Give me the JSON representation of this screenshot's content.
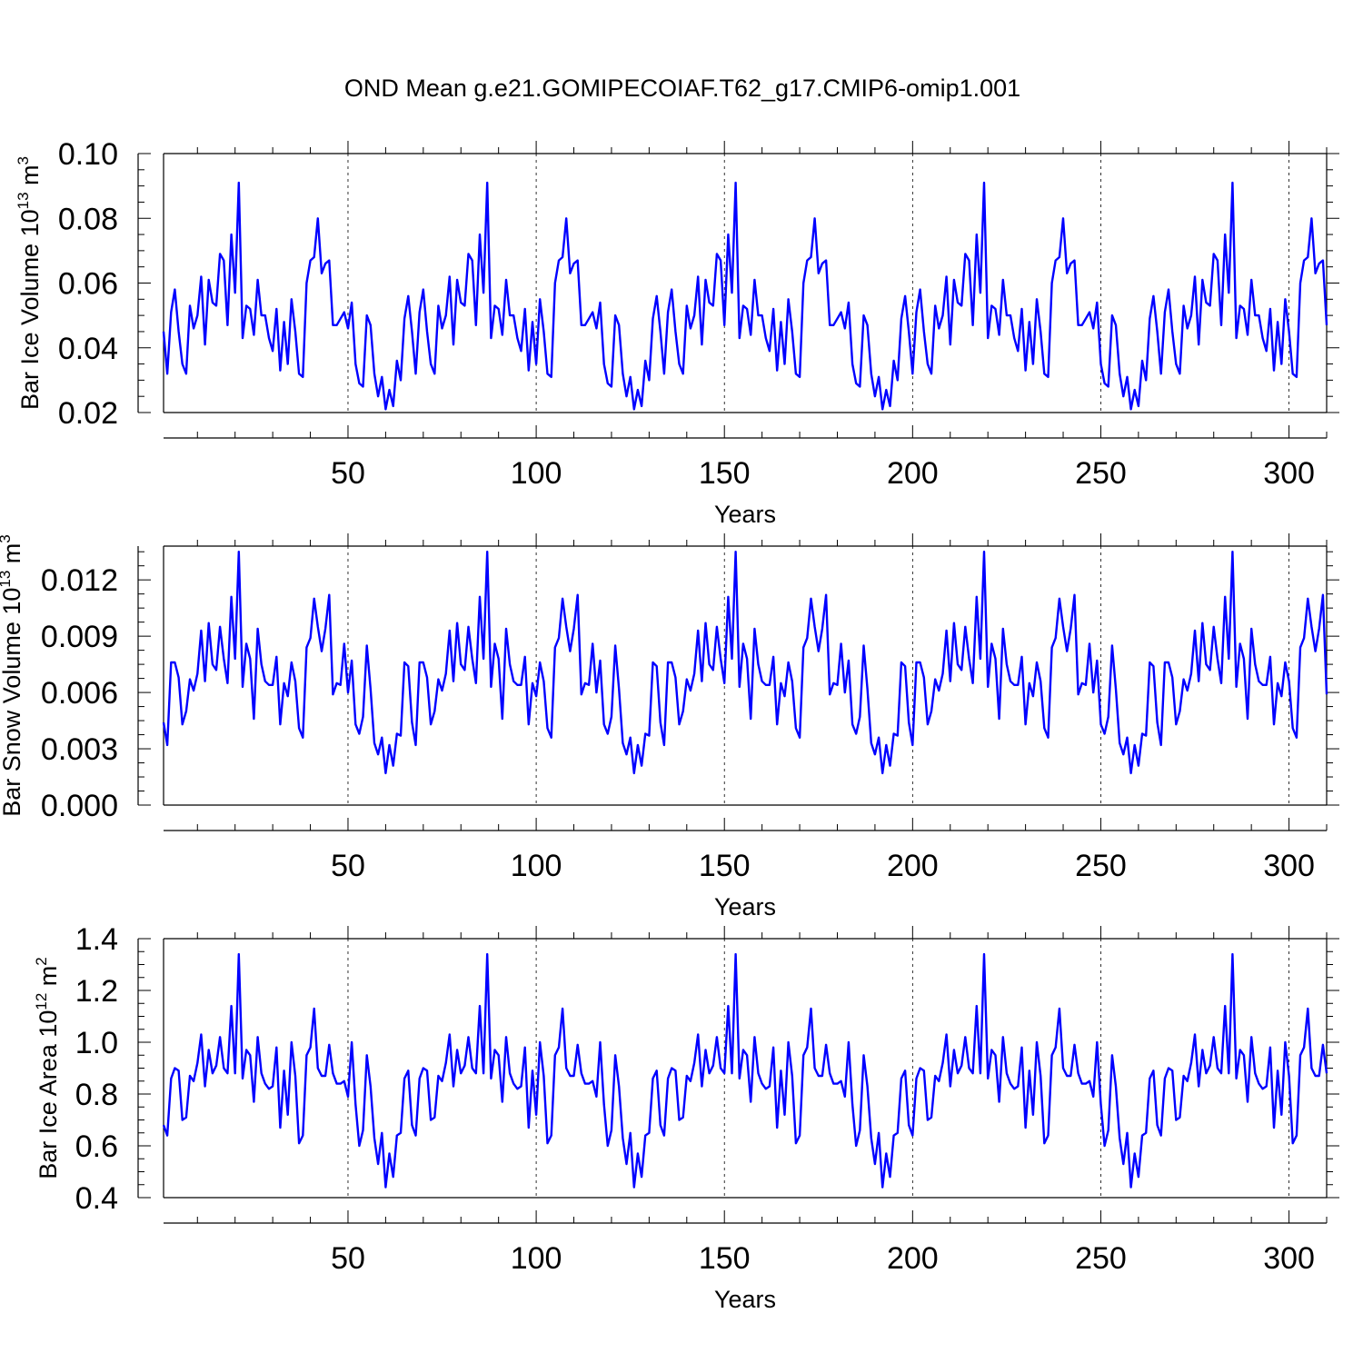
{
  "title": "OND Mean g.e21.GOMIPECOIAF.T62_g17.CMIP6-omip1.001",
  "line_color": "#0000ff",
  "chart_data": [
    {
      "type": "line",
      "ylabel_main": "Bar Ice Volume 10",
      "ylabel_exp": "13",
      "ylabel_unit": " m",
      "ylabel_unit_exp": "3",
      "xlabel": "Years",
      "xlim": [
        1,
        310
      ],
      "ylim": [
        0.02,
        0.1
      ],
      "yticks": [
        0.02,
        0.04,
        0.06,
        0.08,
        0.1
      ],
      "ytick_labels": [
        "0.02",
        "0.04",
        "0.06",
        "0.08",
        "0.10"
      ],
      "xticks": [
        50,
        100,
        150,
        200,
        250,
        300
      ],
      "xtick_labels": [
        "50",
        "100",
        "150",
        "200",
        "250",
        "300"
      ],
      "cycle_values": [
        0.045,
        0.032,
        0.051,
        0.058,
        0.045,
        0.035,
        0.032,
        0.053,
        0.046,
        0.05,
        0.062,
        0.041,
        0.061,
        0.054,
        0.053,
        0.069,
        0.067,
        0.047,
        0.075,
        0.057,
        0.091,
        0.043,
        0.053,
        0.052,
        0.044,
        0.061,
        0.05,
        0.05,
        0.043,
        0.039,
        0.052,
        0.033,
        0.048,
        0.035,
        0.055,
        0.045,
        0.032,
        0.031,
        0.06,
        0.067,
        0.068,
        0.08,
        0.063,
        0.066,
        0.067,
        0.047,
        0.047,
        0.049,
        0.051,
        0.046,
        0.054,
        0.035,
        0.029,
        0.028,
        0.05,
        0.047,
        0.032,
        0.025,
        0.031,
        0.021,
        0.027,
        0.022,
        0.036,
        0.03,
        0.049,
        0.056
      ]
    },
    {
      "type": "line",
      "ylabel_main": "Bar Snow Volume 10",
      "ylabel_exp": "13",
      "ylabel_unit": " m",
      "ylabel_unit_exp": "3",
      "xlabel": "Years",
      "xlim": [
        1,
        310
      ],
      "ylim": [
        0.0,
        0.0138
      ],
      "yticks": [
        0.0,
        0.003,
        0.006,
        0.009,
        0.012
      ],
      "ytick_labels": [
        "0.000",
        "0.003",
        "0.006",
        "0.009",
        "0.012"
      ],
      "xticks": [
        50,
        100,
        150,
        200,
        250,
        300
      ],
      "xtick_labels": [
        "50",
        "100",
        "150",
        "200",
        "250",
        "300"
      ],
      "cycle_values": [
        0.0044,
        0.0032,
        0.0076,
        0.0076,
        0.0068,
        0.0043,
        0.005,
        0.0067,
        0.0061,
        0.007,
        0.0093,
        0.0066,
        0.0097,
        0.0075,
        0.0072,
        0.0095,
        0.0078,
        0.0065,
        0.0111,
        0.0078,
        0.0135,
        0.0063,
        0.0086,
        0.0078,
        0.0046,
        0.0094,
        0.0075,
        0.0066,
        0.0064,
        0.0064,
        0.0079,
        0.0043,
        0.0065,
        0.0058,
        0.0076,
        0.0066,
        0.0041,
        0.0036,
        0.0084,
        0.0089,
        0.011,
        0.0095,
        0.0082,
        0.0094,
        0.0112,
        0.0059,
        0.0065,
        0.0064,
        0.0086,
        0.006,
        0.0077,
        0.0043,
        0.0038,
        0.0047,
        0.0085,
        0.0062,
        0.0033,
        0.0027,
        0.0036,
        0.0017,
        0.0032,
        0.0021,
        0.0038,
        0.0037,
        0.0076,
        0.0074
      ]
    },
    {
      "type": "line",
      "ylabel_main": "Bar Ice Area 10",
      "ylabel_exp": "12",
      "ylabel_unit": " m",
      "ylabel_unit_exp": "2",
      "xlabel": "Years",
      "xlim": [
        1,
        310
      ],
      "ylim": [
        0.4,
        1.4
      ],
      "yticks": [
        0.4,
        0.6,
        0.8,
        1.0,
        1.2,
        1.4
      ],
      "ytick_labels": [
        "0.4",
        "0.6",
        "0.8",
        "1.0",
        "1.2",
        "1.4"
      ],
      "xticks": [
        50,
        100,
        150,
        200,
        250,
        300
      ],
      "xtick_labels": [
        "50",
        "100",
        "150",
        "200",
        "250",
        "300"
      ],
      "cycle_values": [
        0.68,
        0.64,
        0.86,
        0.9,
        0.89,
        0.7,
        0.71,
        0.87,
        0.85,
        0.92,
        1.03,
        0.83,
        0.97,
        0.88,
        0.91,
        1.02,
        0.9,
        0.88,
        1.14,
        0.88,
        1.34,
        0.86,
        0.97,
        0.95,
        0.77,
        1.02,
        0.88,
        0.84,
        0.82,
        0.83,
        0.98,
        0.67,
        0.89,
        0.72,
        1.0,
        0.87,
        0.61,
        0.64,
        0.95,
        0.98,
        1.13,
        0.9,
        0.87,
        0.87,
        0.99,
        0.88,
        0.84,
        0.84,
        0.85,
        0.79,
        1.0,
        0.76,
        0.6,
        0.66,
        0.95,
        0.83,
        0.63,
        0.53,
        0.65,
        0.44,
        0.57,
        0.48,
        0.64,
        0.65,
        0.86,
        0.89
      ]
    }
  ]
}
